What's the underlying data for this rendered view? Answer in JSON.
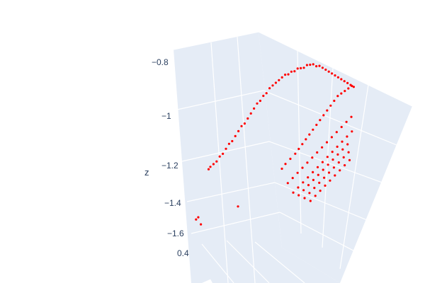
{
  "chart_data": {
    "type": "scatter",
    "projection": "3d",
    "title": "",
    "axes": {
      "z": {
        "label": "z",
        "ticks": [
          "−0.8",
          "−1",
          "−1.2",
          "−1.4",
          "−1.6"
        ]
      },
      "y": {
        "label": "",
        "ticks": [
          "0.4"
        ]
      },
      "x": {
        "label": "",
        "ticks": []
      }
    },
    "grid": true,
    "colors": {
      "marker": "#ff0000",
      "pane": "#e5ecf6",
      "gridline": "#ffffff",
      "text": "#2a3f5f"
    },
    "series": [
      {
        "marker": "point",
        "x": [
          0.05,
          0.06,
          0.08,
          0.1,
          0.12,
          0.14,
          0.16,
          0.18,
          0.2,
          0.22,
          0.24,
          0.26,
          0.28,
          0.3,
          0.32,
          0.34,
          0.36,
          0.38,
          0.4,
          0.42,
          0.44,
          0.46,
          0.48,
          0.5,
          0.52,
          0.54,
          0.56,
          0.58,
          0.6,
          0.62,
          0.64,
          0.66,
          0.68,
          0.7,
          0.72,
          0.74,
          0.76,
          0.78,
          0.8,
          0.82,
          0.84,
          0.86,
          0.88,
          0.9,
          0.92,
          0.94,
          0.96,
          0.98,
          0.5,
          0.52,
          0.55,
          0.58,
          0.6,
          0.62,
          0.64,
          0.66,
          0.68,
          0.7,
          0.72,
          0.74,
          0.76,
          0.78,
          0.8,
          0.82,
          0.84,
          0.86,
          0.88,
          0.9,
          0.55,
          0.58,
          0.61,
          0.64,
          0.67,
          0.7,
          0.73,
          0.76,
          0.79,
          0.82,
          0.85,
          0.88,
          0.91,
          0.94,
          0.6,
          0.63,
          0.66,
          0.69,
          0.72,
          0.75,
          0.78,
          0.81,
          0.84,
          0.87,
          0.9,
          0.93,
          0.96,
          0.65,
          0.68,
          0.71,
          0.74,
          0.77,
          0.8,
          0.83,
          0.86,
          0.89,
          0.92,
          0.95,
          0.7,
          0.73,
          0.76,
          0.79,
          0.82,
          0.85,
          0.88,
          0.91,
          0.94,
          0.97,
          0.75,
          0.78,
          0.81,
          0.84,
          0.87,
          0.9,
          0.93,
          0.96,
          0.99,
          0.02,
          0.03,
          0.04,
          0.3
        ],
        "y": [
          0.3,
          0.31,
          0.32,
          0.33,
          0.34,
          0.35,
          0.36,
          0.37,
          0.38,
          0.39,
          0.4,
          0.41,
          0.42,
          0.43,
          0.44,
          0.45,
          0.46,
          0.47,
          0.48,
          0.49,
          0.5,
          0.51,
          0.52,
          0.53,
          0.54,
          0.55,
          0.56,
          0.57,
          0.58,
          0.59,
          0.6,
          0.61,
          0.62,
          0.63,
          0.64,
          0.65,
          0.66,
          0.67,
          0.68,
          0.69,
          0.7,
          0.71,
          0.72,
          0.73,
          0.74,
          0.75,
          0.76,
          0.77,
          0.6,
          0.62,
          0.64,
          0.66,
          0.68,
          0.7,
          0.72,
          0.74,
          0.76,
          0.78,
          0.8,
          0.82,
          0.84,
          0.86,
          0.88,
          0.9,
          0.92,
          0.94,
          0.96,
          0.98,
          0.58,
          0.6,
          0.62,
          0.64,
          0.66,
          0.68,
          0.7,
          0.72,
          0.74,
          0.76,
          0.78,
          0.8,
          0.82,
          0.84,
          0.55,
          0.57,
          0.59,
          0.61,
          0.63,
          0.65,
          0.67,
          0.69,
          0.71,
          0.73,
          0.75,
          0.77,
          0.79,
          0.52,
          0.54,
          0.56,
          0.58,
          0.6,
          0.62,
          0.64,
          0.66,
          0.68,
          0.7,
          0.72,
          0.5,
          0.52,
          0.54,
          0.56,
          0.58,
          0.6,
          0.62,
          0.64,
          0.66,
          0.68,
          0.48,
          0.5,
          0.52,
          0.54,
          0.56,
          0.58,
          0.6,
          0.62,
          0.64,
          0.1,
          0.12,
          0.15,
          0.2
        ],
        "z": [
          -1.25,
          -1.24,
          -1.23,
          -1.22,
          -1.2,
          -1.19,
          -1.17,
          -1.15,
          -1.14,
          -1.12,
          -1.1,
          -1.08,
          -1.07,
          -1.05,
          -1.03,
          -1.01,
          -0.99,
          -0.98,
          -0.96,
          -0.95,
          -0.93,
          -0.92,
          -0.91,
          -0.9,
          -0.89,
          -0.88,
          -0.88,
          -0.87,
          -0.87,
          -0.86,
          -0.86,
          -0.86,
          -0.85,
          -0.85,
          -0.85,
          -0.86,
          -0.86,
          -0.87,
          -0.88,
          -0.89,
          -0.9,
          -0.91,
          -0.92,
          -0.93,
          -0.94,
          -0.95,
          -0.96,
          -0.97,
          -1.28,
          -1.26,
          -1.24,
          -1.22,
          -1.2,
          -1.18,
          -1.16,
          -1.14,
          -1.12,
          -1.1,
          -1.08,
          -1.06,
          -1.04,
          -1.02,
          -1.0,
          -0.98,
          -0.97,
          -0.96,
          -0.95,
          -0.94,
          -1.35,
          -1.33,
          -1.31,
          -1.29,
          -1.27,
          -1.25,
          -1.23,
          -1.21,
          -1.19,
          -1.17,
          -1.15,
          -1.13,
          -1.11,
          -1.09,
          -1.4,
          -1.38,
          -1.36,
          -1.34,
          -1.32,
          -1.3,
          -1.28,
          -1.26,
          -1.24,
          -1.22,
          -1.2,
          -1.18,
          -1.16,
          -1.42,
          -1.4,
          -1.38,
          -1.36,
          -1.34,
          -1.32,
          -1.3,
          -1.28,
          -1.26,
          -1.24,
          -1.22,
          -1.44,
          -1.42,
          -1.4,
          -1.38,
          -1.36,
          -1.34,
          -1.32,
          -1.3,
          -1.28,
          -1.26,
          -1.46,
          -1.44,
          -1.42,
          -1.4,
          -1.38,
          -1.36,
          -1.34,
          -1.32,
          -1.3,
          -1.48,
          -1.47,
          -1.5,
          -1.45
        ]
      }
    ]
  }
}
